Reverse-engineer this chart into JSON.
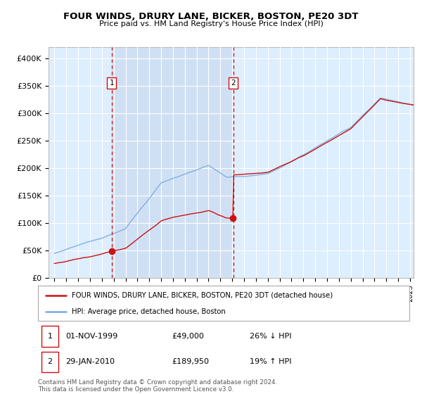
{
  "title": "FOUR WINDS, DRURY LANE, BICKER, BOSTON, PE20 3DT",
  "subtitle": "Price paid vs. HM Land Registry's House Price Index (HPI)",
  "legend_line1": "FOUR WINDS, DRURY LANE, BICKER, BOSTON, PE20 3DT (detached house)",
  "legend_line2": "HPI: Average price, detached house, Boston",
  "transaction1_date": "01-NOV-1999",
  "transaction1_price": "£49,000",
  "transaction1_hpi": "26% ↓ HPI",
  "transaction1_x": 1999.83,
  "transaction1_y": 49000,
  "transaction2_date": "29-JAN-2010",
  "transaction2_price": "£189,950",
  "transaction2_hpi": "19% ↑ HPI",
  "transaction2_x": 2010.08,
  "transaction2_y": 189950,
  "footnote": "Contains HM Land Registry data © Crown copyright and database right 2024.\nThis data is licensed under the Open Government Licence v3.0.",
  "hpi_color": "#7aaadd",
  "price_color": "#cc1111",
  "vline_color": "#cc1111",
  "plot_bg": "#ddeeff",
  "between_bg": "#ccd9ee",
  "ylim": [
    0,
    420000
  ],
  "xlim_start": 1994.5,
  "xlim_end": 2025.3,
  "yticks": [
    0,
    50000,
    100000,
    150000,
    200000,
    250000,
    300000,
    350000,
    400000
  ],
  "ylabels": [
    "£0",
    "£50K",
    "£100K",
    "£150K",
    "£200K",
    "£250K",
    "£300K",
    "£350K",
    "£400K"
  ]
}
